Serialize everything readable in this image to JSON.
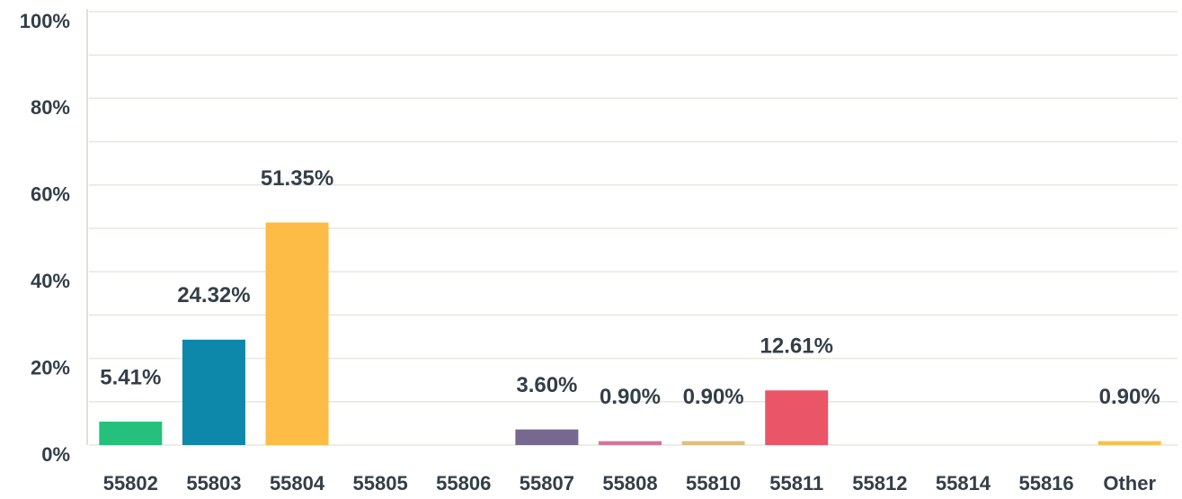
{
  "chart_data": {
    "type": "bar",
    "categories": [
      "55802",
      "55803",
      "55804",
      "55805",
      "55806",
      "55807",
      "55808",
      "55810",
      "55811",
      "55812",
      "55814",
      "55816",
      "Other"
    ],
    "values": [
      5.41,
      24.32,
      51.35,
      0,
      0,
      3.6,
      0.9,
      0.9,
      12.61,
      0,
      0,
      0,
      0.9
    ],
    "value_labels": [
      "5.41%",
      "24.32%",
      "51.35%",
      null,
      null,
      "3.60%",
      "0.90%",
      "0.90%",
      "12.61%",
      null,
      null,
      null,
      "0.90%"
    ],
    "colors": [
      "#25c07b",
      "#0d87aa",
      "#fdbc45",
      null,
      null,
      "#76688e",
      "#d5759b",
      "#dcc07e",
      "#ea5668",
      null,
      null,
      null,
      "#f5c24c"
    ],
    "ylim": [
      0,
      100
    ],
    "yticks": [
      {
        "value": 0,
        "label": "0%"
      },
      {
        "value": 20,
        "label": "20%"
      },
      {
        "value": 40,
        "label": "40%"
      },
      {
        "value": 60,
        "label": "60%"
      },
      {
        "value": 80,
        "label": "80%"
      },
      {
        "value": 100,
        "label": "100%"
      }
    ],
    "yminor": [
      10,
      30,
      50,
      70,
      90
    ],
    "grid": true
  }
}
